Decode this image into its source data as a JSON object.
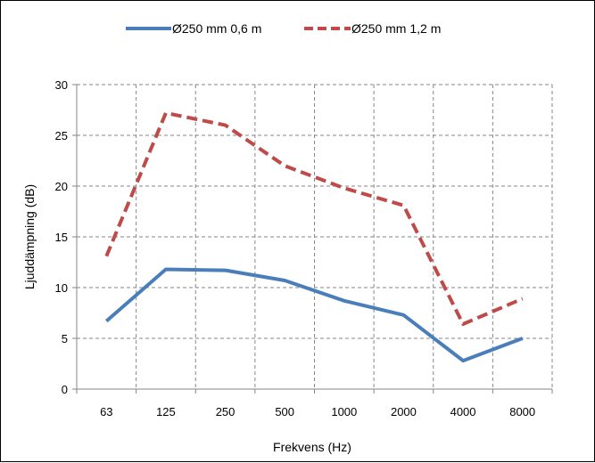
{
  "chart_data": {
    "type": "line",
    "categories": [
      "63",
      "125",
      "250",
      "500",
      "1000",
      "2000",
      "4000",
      "8000"
    ],
    "series": [
      {
        "name": "Ø250 mm 0,6 m",
        "values": [
          6.7,
          11.8,
          11.7,
          10.7,
          8.7,
          7.3,
          2.8,
          5.0
        ],
        "color": "#4a7ebb",
        "style": "solid"
      },
      {
        "name": "Ø250 mm 1,2 m",
        "values": [
          13.1,
          27.2,
          26.0,
          22.0,
          19.8,
          18.1,
          6.4,
          8.9
        ],
        "color": "#be4b48",
        "style": "dashed"
      }
    ],
    "title": "",
    "xlabel": "Frekvens (Hz)",
    "ylabel": "Ljuddämpning (dB)",
    "ylim": [
      0,
      30
    ],
    "yticks": [
      "0",
      "5",
      "10",
      "15",
      "20",
      "25",
      "30"
    ],
    "grid": true,
    "legend_position": "top"
  }
}
